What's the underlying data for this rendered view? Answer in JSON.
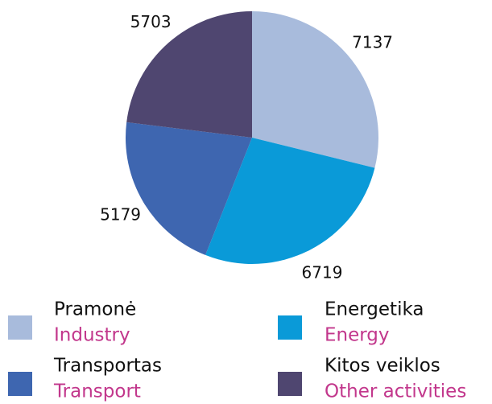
{
  "chart_data": {
    "type": "pie",
    "categories": [
      "Pramonė",
      "Energetika",
      "Transportas",
      "Kitos veiklos"
    ],
    "categories_en": [
      "Industry",
      "Energy",
      "Transport",
      "Other activities"
    ],
    "values": [
      7137,
      6719,
      5179,
      5703
    ],
    "colors": [
      "#a8bbdc",
      "#0a9ad8",
      "#3e66b0",
      "#4f4670"
    ],
    "legend": "bottom"
  }
}
